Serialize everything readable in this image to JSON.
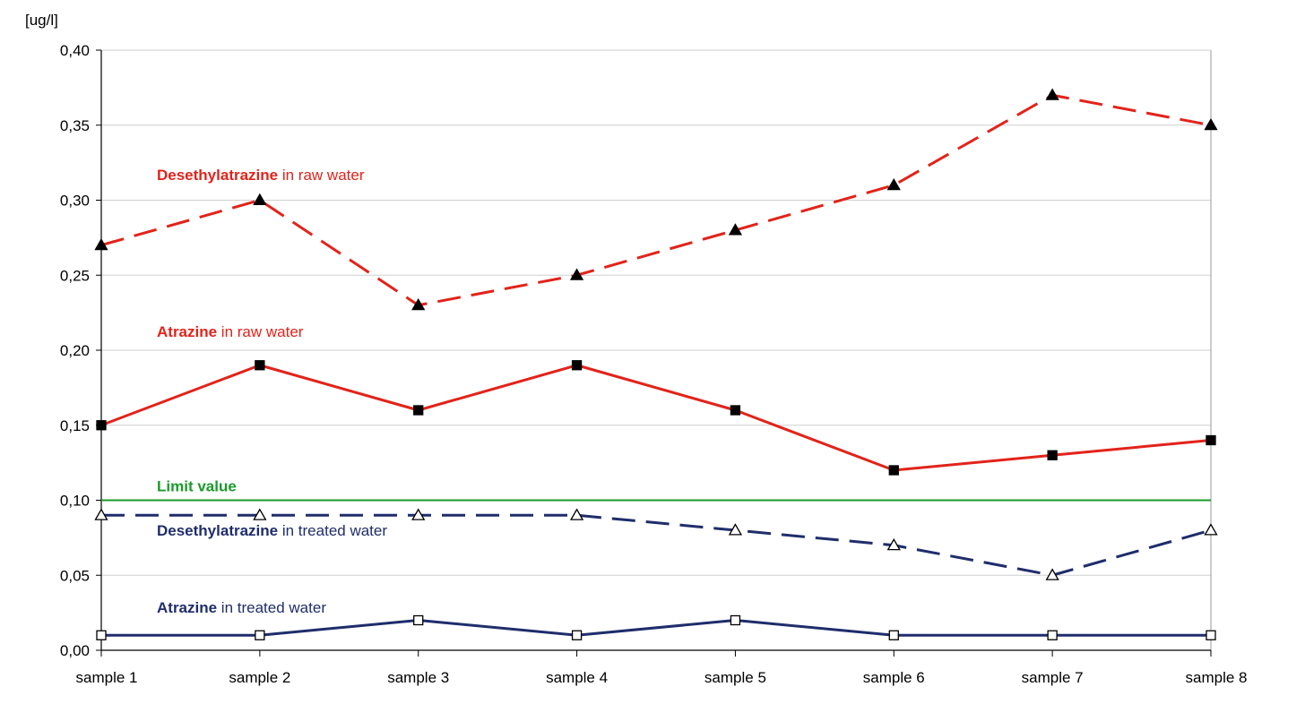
{
  "chart_data": {
    "type": "line",
    "y_unit_label": "[ug/l]",
    "categories": [
      "sample 1",
      "sample 2",
      "sample 3",
      "sample 4",
      "sample 5",
      "sample 6",
      "sample 7",
      "sample 8"
    ],
    "ylim": [
      0,
      0.4
    ],
    "y_ticks": [
      "0,00",
      "0,05",
      "0,10",
      "0,15",
      "0,20",
      "0,25",
      "0,30",
      "0,35",
      "0,40"
    ],
    "grid": "horizontal",
    "series": [
      {
        "label_bold": "Desethylatrazine",
        "label_rest": " in raw water",
        "values": [
          0.27,
          0.3,
          0.23,
          0.25,
          0.28,
          0.31,
          0.37,
          0.35
        ],
        "color": "#e2231a",
        "line_style": "dashed",
        "marker": "filled-triangle"
      },
      {
        "label_bold": "Atrazine",
        "label_rest": " in raw water",
        "values": [
          0.15,
          0.19,
          0.16,
          0.19,
          0.16,
          0.12,
          0.13,
          0.14
        ],
        "color": "#e2231a",
        "line_style": "solid",
        "marker": "filled-square"
      },
      {
        "label_bold": "Desethylatrazine",
        "label_rest": " in treated water",
        "values": [
          0.09,
          0.09,
          0.09,
          0.09,
          0.08,
          0.07,
          0.05,
          0.08
        ],
        "color": "#1f2d6b",
        "line_style": "dashed",
        "marker": "open-triangle"
      },
      {
        "label_bold": "Atrazine",
        "label_rest": " in treated water",
        "values": [
          0.01,
          0.01,
          0.02,
          0.01,
          0.02,
          0.01,
          0.01,
          0.01
        ],
        "color": "#1f2d6b",
        "line_style": "solid",
        "marker": "open-square"
      }
    ],
    "limit": {
      "label_bold": "Limit value",
      "value": 0.1,
      "color": "#1a9a2a"
    }
  }
}
